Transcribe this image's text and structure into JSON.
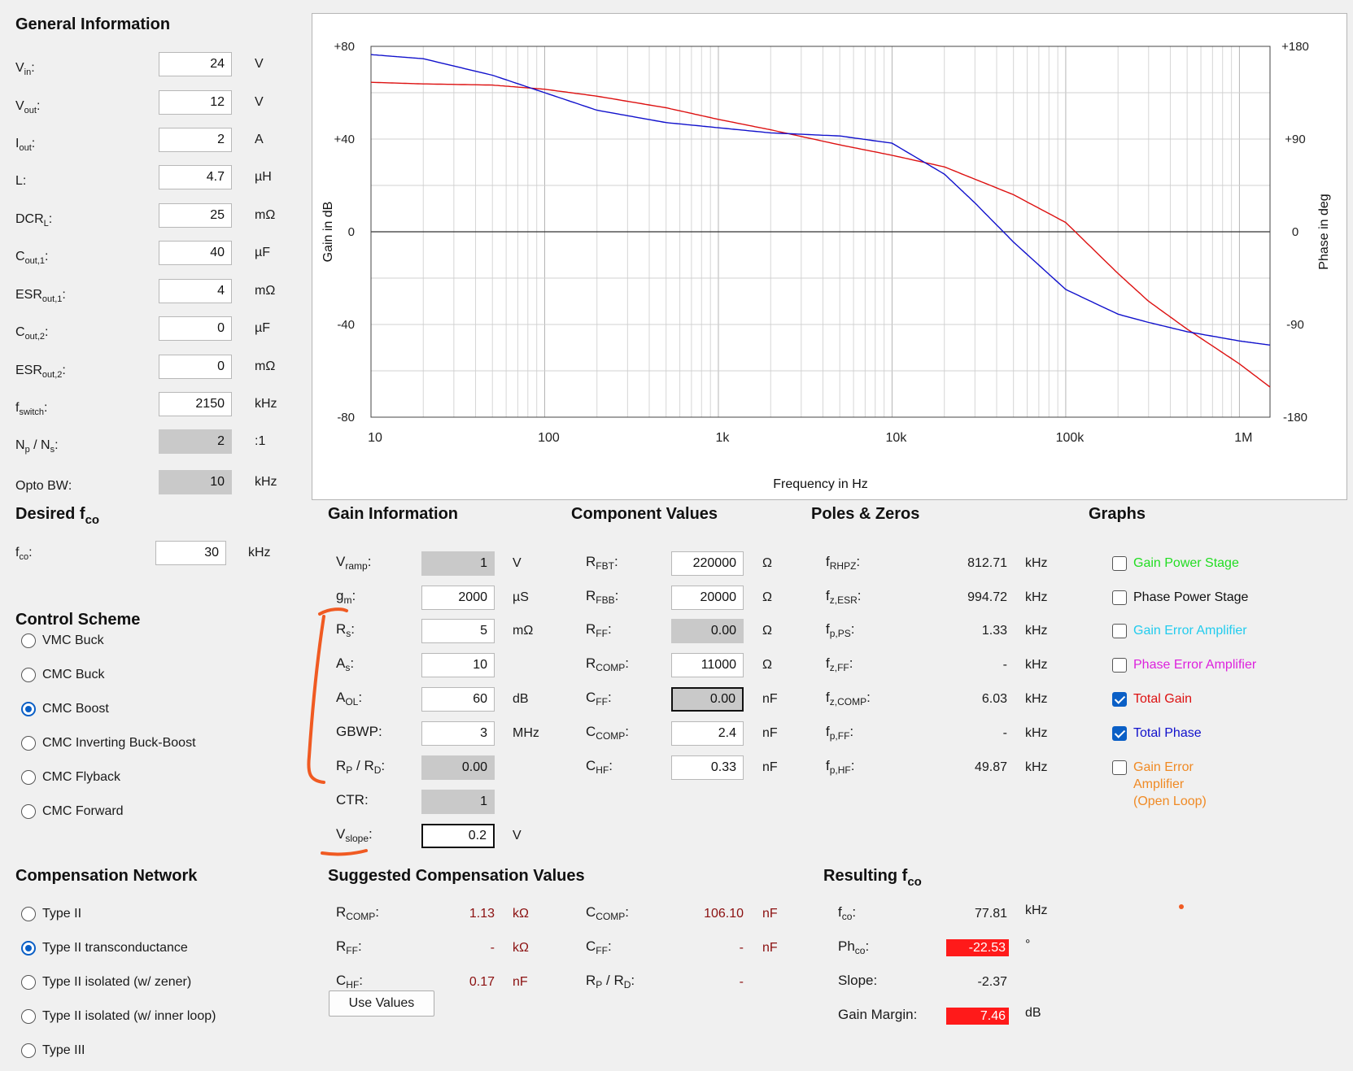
{
  "general": {
    "title": "General Information",
    "rows": [
      {
        "label": "V",
        "sub": "in",
        "suffix": ":",
        "value": "24",
        "unit": "V",
        "ro": false
      },
      {
        "label": "V",
        "sub": "out",
        "suffix": ":",
        "value": "12",
        "unit": "V",
        "ro": false
      },
      {
        "label": "I",
        "sub": "out",
        "suffix": ":",
        "value": "2",
        "unit": "A",
        "ro": false
      },
      {
        "label": "L",
        "sub": "",
        "suffix": ":",
        "value": "4.7",
        "unit": "µH",
        "ro": false
      },
      {
        "label": "DCR",
        "sub": "L",
        "suffix": ":",
        "value": "25",
        "unit": "mΩ",
        "ro": false
      },
      {
        "label": "C",
        "sub": "out,1",
        "suffix": ":",
        "value": "40",
        "unit": "µF",
        "ro": false
      },
      {
        "label": "ESR",
        "sub": "out,1",
        "suffix": ":",
        "value": "4",
        "unit": "mΩ",
        "ro": false
      },
      {
        "label": "C",
        "sub": "out,2",
        "suffix": ":",
        "value": "0",
        "unit": "µF",
        "ro": false
      },
      {
        "label": "ESR",
        "sub": "out,2",
        "suffix": ":",
        "value": "0",
        "unit": "mΩ",
        "ro": false
      },
      {
        "label": "f",
        "sub": "switch",
        "suffix": ":",
        "value": "2150",
        "unit": "kHz",
        "ro": false
      },
      {
        "label": "N",
        "sub": "p",
        "suffix": " / N",
        "sub2": "s",
        "suffix2": ":",
        "value": "2",
        "unit": ":1",
        "ro": true
      },
      {
        "label": "Opto BW",
        "sub": "",
        "suffix": ":",
        "value": "10",
        "unit": "kHz",
        "ro": true
      }
    ]
  },
  "desired": {
    "title": "Desired f",
    "title_sub": "co",
    "label": "f",
    "label_sub": "co",
    "value": "30",
    "unit": "kHz"
  },
  "control_scheme": {
    "title": "Control Scheme",
    "options": [
      "VMC Buck",
      "CMC Buck",
      "CMC Boost",
      "CMC Inverting Buck-Boost",
      "CMC Flyback",
      "CMC Forward"
    ],
    "selected": 2
  },
  "compensation_network": {
    "title": "Compensation Network",
    "options": [
      "Type II",
      "Type II transconductance",
      "Type II isolated (w/ zener)",
      "Type II isolated (w/ inner loop)",
      "Type III"
    ],
    "selected": 1
  },
  "gain_info": {
    "title": "Gain Information",
    "rows": [
      {
        "label": "V",
        "sub": "ramp",
        "suffix": ":",
        "value": "1",
        "unit": "V",
        "ro": true
      },
      {
        "label": "g",
        "sub": "m",
        "suffix": ":",
        "value": "2000",
        "unit": "µS",
        "ro": false
      },
      {
        "label": "R",
        "sub": "s",
        "suffix": ":",
        "value": "5",
        "unit": "mΩ",
        "ro": false
      },
      {
        "label": "A",
        "sub": "s",
        "suffix": ":",
        "value": "10",
        "unit": "",
        "ro": false
      },
      {
        "label": "A",
        "sub": "OL",
        "suffix": ":",
        "value": "60",
        "unit": "dB",
        "ro": false
      },
      {
        "label": "GBWP",
        "sub": "",
        "suffix": ":",
        "value": "3",
        "unit": "MHz",
        "ro": false
      },
      {
        "label": "R",
        "sub": "P",
        "suffix": " / R",
        "sub2": "D",
        "suffix2": ":",
        "value": "0.00",
        "unit": "",
        "ro": true
      },
      {
        "label": "CTR",
        "sub": "",
        "suffix": ":",
        "value": "1",
        "unit": "",
        "ro": true
      },
      {
        "label": "V",
        "sub": "slope",
        "suffix": ":",
        "value": "0.2",
        "unit": "V",
        "ro": false,
        "focus": true
      }
    ]
  },
  "component_values": {
    "title": "Component Values",
    "rows": [
      {
        "label": "R",
        "sub": "FBT",
        "suffix": ":",
        "value": "220000",
        "unit": "Ω",
        "ro": false
      },
      {
        "label": "R",
        "sub": "FBB",
        "suffix": ":",
        "value": "20000",
        "unit": "Ω",
        "ro": false
      },
      {
        "label": "R",
        "sub": "FF",
        "suffix": ":",
        "value": "0.00",
        "unit": "Ω",
        "ro": true
      },
      {
        "label": "R",
        "sub": "COMP",
        "suffix": ":",
        "value": "11000",
        "unit": "Ω",
        "ro": false
      },
      {
        "label": "C",
        "sub": "FF",
        "suffix": ":",
        "value": "0.00",
        "unit": "nF",
        "ro": true,
        "focus": true
      },
      {
        "label": "C",
        "sub": "COMP",
        "suffix": ":",
        "value": "2.4",
        "unit": "nF",
        "ro": false
      },
      {
        "label": "C",
        "sub": "HF",
        "suffix": ":",
        "value": "0.33",
        "unit": "nF",
        "ro": false
      }
    ]
  },
  "poles_zeros": {
    "title": "Poles & Zeros",
    "rows": [
      {
        "label": "f",
        "sub": "RHPZ",
        "value": "812.71",
        "unit": "kHz"
      },
      {
        "label": "f",
        "sub": "z,ESR",
        "value": "994.72",
        "unit": "kHz"
      },
      {
        "label": "f",
        "sub": "p,PS",
        "value": "1.33",
        "unit": "kHz"
      },
      {
        "label": "f",
        "sub": "z,FF",
        "value": "-",
        "unit": "kHz"
      },
      {
        "label": "f",
        "sub": "z,COMP",
        "value": "6.03",
        "unit": "kHz"
      },
      {
        "label": "f",
        "sub": "p,FF",
        "value": "-",
        "unit": "kHz"
      },
      {
        "label": "f",
        "sub": "p,HF",
        "value": "49.87",
        "unit": "kHz"
      }
    ]
  },
  "graphs": {
    "title": "Graphs",
    "items": [
      {
        "label": "Gain Power Stage",
        "checked": false,
        "color": "#22dd22"
      },
      {
        "label": "Phase Power Stage",
        "checked": false,
        "color": "#111111"
      },
      {
        "label": "Gain Error Amplifier",
        "checked": false,
        "color": "#22ccee"
      },
      {
        "label": "Phase Error Amplifier",
        "checked": false,
        "color": "#dd22dd"
      },
      {
        "label": "Total Gain",
        "checked": true,
        "color": "#dd1111"
      },
      {
        "label": "Total Phase",
        "checked": true,
        "color": "#1111cc"
      },
      {
        "label": "Gain Error Amplifier (Open Loop)",
        "lines": [
          "Gain Error",
          "Amplifier",
          "(Open Loop)"
        ],
        "checked": false,
        "color": "#f08a24"
      }
    ]
  },
  "suggested": {
    "title": "Suggested Compensation Values",
    "left": [
      {
        "label": "R",
        "sub": "COMP",
        "value": "1.13",
        "unit": "kΩ"
      },
      {
        "label": "R",
        "sub": "FF",
        "value": "-",
        "unit": "kΩ"
      },
      {
        "label": "C",
        "sub": "HF",
        "value": "0.17",
        "unit": "nF"
      }
    ],
    "right": [
      {
        "label": "C",
        "sub": "COMP",
        "value": "106.10",
        "unit": "nF"
      },
      {
        "label": "C",
        "sub": "FF",
        "value": "-",
        "unit": "nF"
      },
      {
        "label": "R",
        "sub": "P",
        "label2": " / R",
        "sub2": "D",
        "value": "-",
        "unit": ""
      }
    ],
    "button": "Use Values"
  },
  "resulting": {
    "title": "Resulting f",
    "title_sub": "co",
    "rows": [
      {
        "label": "f",
        "sub": "co",
        "suffix": ":",
        "value": "77.81",
        "unit": "kHz",
        "alert": false
      },
      {
        "label": "Ph",
        "sub": "co",
        "suffix": ":",
        "value": "-22.53",
        "unit": "°",
        "alert": true
      },
      {
        "label": "Slope",
        "sub": "",
        "suffix": ":",
        "value": "-2.37",
        "unit": "",
        "alert": false
      },
      {
        "label": "Gain Margin",
        "sub": "",
        "suffix": ":",
        "value": "7.46",
        "unit": "dB",
        "alert": true
      }
    ]
  },
  "chart_data": {
    "type": "line",
    "xlabel": "Frequency in Hz",
    "ylabel": "Gain in dB",
    "y2label": "Phase in deg",
    "x_scale": "log",
    "xlim": [
      10,
      1500000
    ],
    "ylim": [
      -80,
      80
    ],
    "y2lim": [
      -180,
      180
    ],
    "x_ticks": [
      {
        "v": 10,
        "t": "10"
      },
      {
        "v": 100,
        "t": "100"
      },
      {
        "v": 1000,
        "t": "1k"
      },
      {
        "v": 10000,
        "t": "10k"
      },
      {
        "v": 100000,
        "t": "100k"
      },
      {
        "v": 1000000,
        "t": "1M"
      }
    ],
    "y_ticks": [
      {
        "v": 80,
        "t": "+80"
      },
      {
        "v": 40,
        "t": "+40"
      },
      {
        "v": 0,
        "t": "0"
      },
      {
        "v": -40,
        "t": "-40"
      },
      {
        "v": -80,
        "t": "-80"
      }
    ],
    "y2_ticks": [
      {
        "v": 180,
        "t": "+180"
      },
      {
        "v": 90,
        "t": "+90"
      },
      {
        "v": 0,
        "t": "0"
      },
      {
        "v": -90,
        "t": "-90"
      },
      {
        "v": -180,
        "t": "-180"
      }
    ],
    "grid": true,
    "series": [
      {
        "name": "Total Gain",
        "axis": "left",
        "color": "#dd1111",
        "x": [
          10,
          20,
          50,
          100,
          200,
          500,
          1000,
          2000,
          5000,
          10000,
          20000,
          50000,
          100000,
          200000,
          300000,
          500000,
          1000000,
          1500000
        ],
        "y": [
          64.5,
          63.8,
          63.3,
          61.5,
          58.5,
          53.5,
          48.5,
          44,
          37.5,
          33,
          28,
          16,
          4,
          -18,
          -30,
          -42,
          -57,
          -67
        ]
      },
      {
        "name": "Total Phase",
        "axis": "right",
        "color": "#1111cc",
        "x": [
          10,
          20,
          50,
          100,
          200,
          500,
          1000,
          2000,
          5000,
          10000,
          20000,
          30000,
          50000,
          100000,
          200000,
          300000,
          500000,
          1000000,
          1500000
        ],
        "y": [
          172,
          168,
          152,
          135,
          118,
          106,
          101,
          96,
          93,
          86,
          56,
          28,
          -10,
          -56,
          -80,
          -88,
          -97,
          -106,
          -110
        ]
      }
    ]
  }
}
